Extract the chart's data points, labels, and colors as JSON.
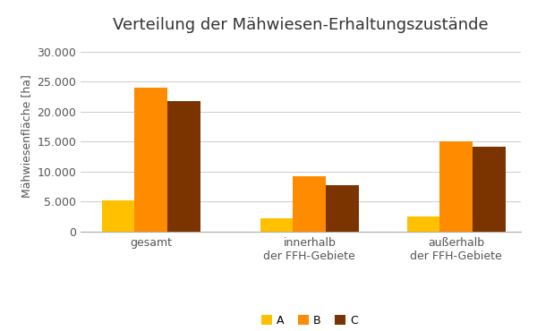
{
  "title": "Verteilung der Mähwiesen-Erhaltungszustände",
  "ylabel": "Mähwiesenfläche [ha]",
  "categories": [
    "gesamt",
    "innerhalb\nder FFH-Gebiete",
    "außerhalb\nder FFH-Gebiete"
  ],
  "series": {
    "A": [
      5200,
      2200,
      2500
    ],
    "B": [
      24000,
      9200,
      15000
    ],
    "C": [
      21800,
      7800,
      14100
    ]
  },
  "colors": {
    "A": "#FFC000",
    "B": "#FF8C00",
    "C": "#7B3300"
  },
  "ylim": [
    0,
    32000
  ],
  "yticks": [
    0,
    5000,
    10000,
    15000,
    20000,
    25000,
    30000
  ],
  "ytick_labels": [
    "0",
    "5.000",
    "10.000",
    "15.000",
    "20.000",
    "25.000",
    "30.000"
  ],
  "bar_width": 0.28,
  "background_color": "#ffffff",
  "grid_color": "#cccccc",
  "title_fontsize": 13,
  "axis_label_fontsize": 9,
  "tick_fontsize": 9,
  "legend_fontsize": 9
}
